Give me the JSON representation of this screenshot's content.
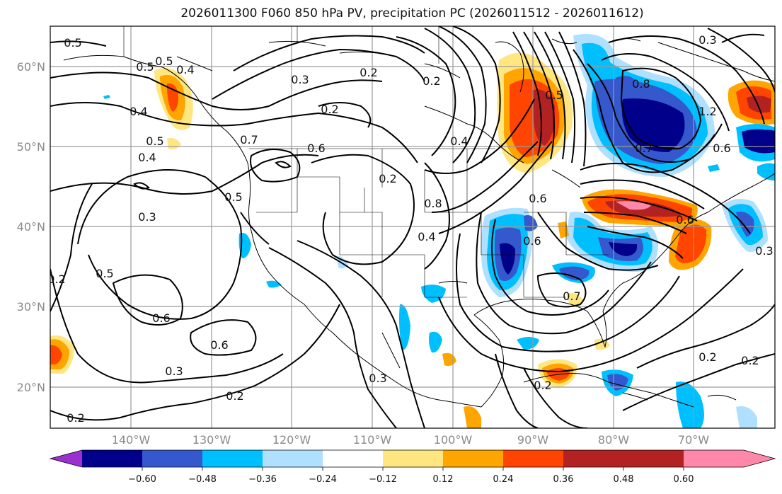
{
  "title": "2026011300 F060 850 hPa PV, precipitation PC (2026011512 - 2026011612)",
  "lat_labels": [
    "60°N",
    "50°N",
    "40°N",
    "30°N",
    "20°N"
  ],
  "lon_labels": [
    "140°W",
    "130°W",
    "120°W",
    "110°W",
    "100°W",
    "90°W",
    "80°W",
    "70°W"
  ],
  "contour_labels": [
    "0.5",
    "0.5",
    "0.4",
    "0.4",
    "0.5",
    "0.4",
    "0.7",
    "0.6",
    "0.3",
    "0.2",
    "0.2",
    "0.2",
    "0.3",
    "0.5",
    "0.6",
    "0.6",
    "0.3",
    "0.2",
    "0.2",
    "0.2",
    "0.5",
    "0.7",
    "0.6",
    "0.3",
    "0.4",
    "0.8",
    "0.6",
    "0.6",
    "0.2",
    "0.2",
    "0.3",
    "0.6",
    "0.2",
    "0.5",
    "0.3",
    "0.4",
    "0.8",
    "0.7",
    "1.2",
    "0.5",
    "0.2"
  ],
  "colorbar": {
    "ticks": [
      "−0.60",
      "−0.48",
      "−0.36",
      "−0.24",
      "−0.12",
      "0.12",
      "0.24",
      "0.36",
      "0.48",
      "0.60"
    ],
    "colors": [
      "#9b30d0",
      "#00008b",
      "#3558cc",
      "#00bfff",
      "#b0e0ff",
      "#ffffff",
      "#ffe680",
      "#ffa500",
      "#ff4500",
      "#b22222",
      "#ff88aa"
    ]
  }
}
